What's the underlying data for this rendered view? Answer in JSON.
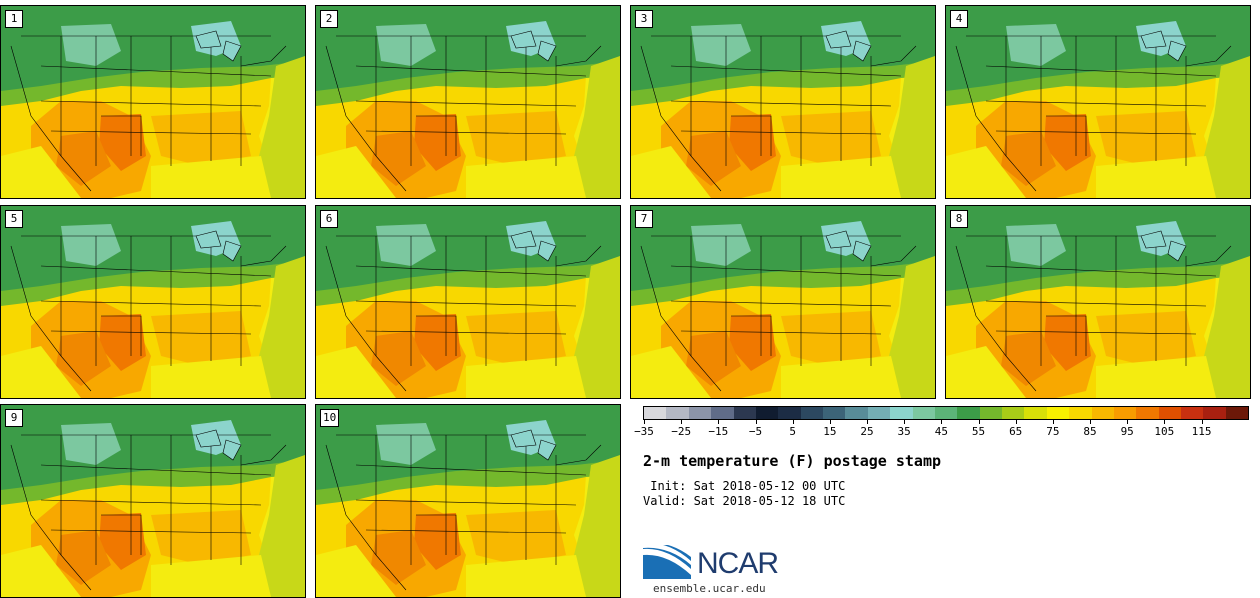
{
  "panels": [
    {
      "label": "1"
    },
    {
      "label": "2"
    },
    {
      "label": "3"
    },
    {
      "label": "4"
    },
    {
      "label": "5"
    },
    {
      "label": "6"
    },
    {
      "label": "7"
    },
    {
      "label": "8"
    },
    {
      "label": "9"
    },
    {
      "label": "10"
    }
  ],
  "legend": {
    "colors": [
      "#d8d8dc",
      "#b4b8c4",
      "#8c94a8",
      "#606c88",
      "#2c3850",
      "#101c30",
      "#1c2c44",
      "#2c4860",
      "#3c6478",
      "#588c98",
      "#74aeb4",
      "#8cd4cc",
      "#7cc8a0",
      "#5cb478",
      "#3c9c48",
      "#74b82c",
      "#a8cc18",
      "#d8e008",
      "#f8f000",
      "#f8d800",
      "#f8b800",
      "#f89c00",
      "#f07800",
      "#e05000",
      "#c83010",
      "#a82010",
      "#6c1808"
    ],
    "tick_labels": [
      "−35",
      "−25",
      "−15",
      "−5",
      "5",
      "15",
      "25",
      "35",
      "45",
      "55",
      "65",
      "75",
      "85",
      "95",
      "105",
      "115"
    ]
  },
  "title": "2-m temperature (F) postage stamp",
  "init": " Init: Sat 2018-05-12 00 UTC",
  "valid": "Valid: Sat 2018-05-12 18 UTC",
  "logo_text": "NCAR",
  "url": "ensemble.ucar.edu"
}
